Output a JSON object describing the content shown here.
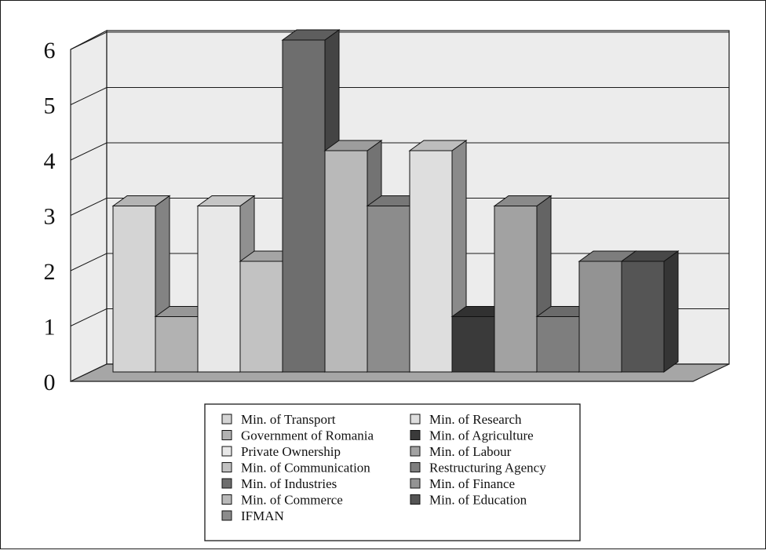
{
  "chart_data": {
    "type": "bar",
    "title": "",
    "xlabel": "",
    "ylabel": "",
    "ylim": [
      0,
      6
    ],
    "yticks": [
      "0",
      "1",
      "2",
      "3",
      "4",
      "5",
      "6"
    ],
    "grid": true,
    "legend_position": "bottom",
    "style": "3d-column",
    "series": [
      {
        "name": "Min. of Transport",
        "value": 3,
        "color": "#d4d4d4"
      },
      {
        "name": "Government of Romania",
        "value": 1,
        "color": "#b2b2b2"
      },
      {
        "name": "Private Ownership",
        "value": 3,
        "color": "#e8e8e8"
      },
      {
        "name": "Min. of Communication",
        "value": 2,
        "color": "#c2c2c2"
      },
      {
        "name": "Min. of Industries",
        "value": 6,
        "color": "#6e6e6e"
      },
      {
        "name": "Min. of Commerce",
        "value": 4,
        "color": "#b9b9b9"
      },
      {
        "name": "IFMAN",
        "value": 3,
        "color": "#8c8c8c"
      },
      {
        "name": "Min. of Research",
        "value": 4,
        "color": "#dedede"
      },
      {
        "name": "Min. of Agriculture",
        "value": 1,
        "color": "#3a3a3a"
      },
      {
        "name": "Min. of Labour",
        "value": 3,
        "color": "#a2a2a2"
      },
      {
        "name": "Restructuring Agency",
        "value": 1,
        "color": "#7e7e7e"
      },
      {
        "name": "Min. of Finance",
        "value": 2,
        "color": "#939393"
      },
      {
        "name": "Min. of Education",
        "value": 2,
        "color": "#555555"
      }
    ]
  }
}
